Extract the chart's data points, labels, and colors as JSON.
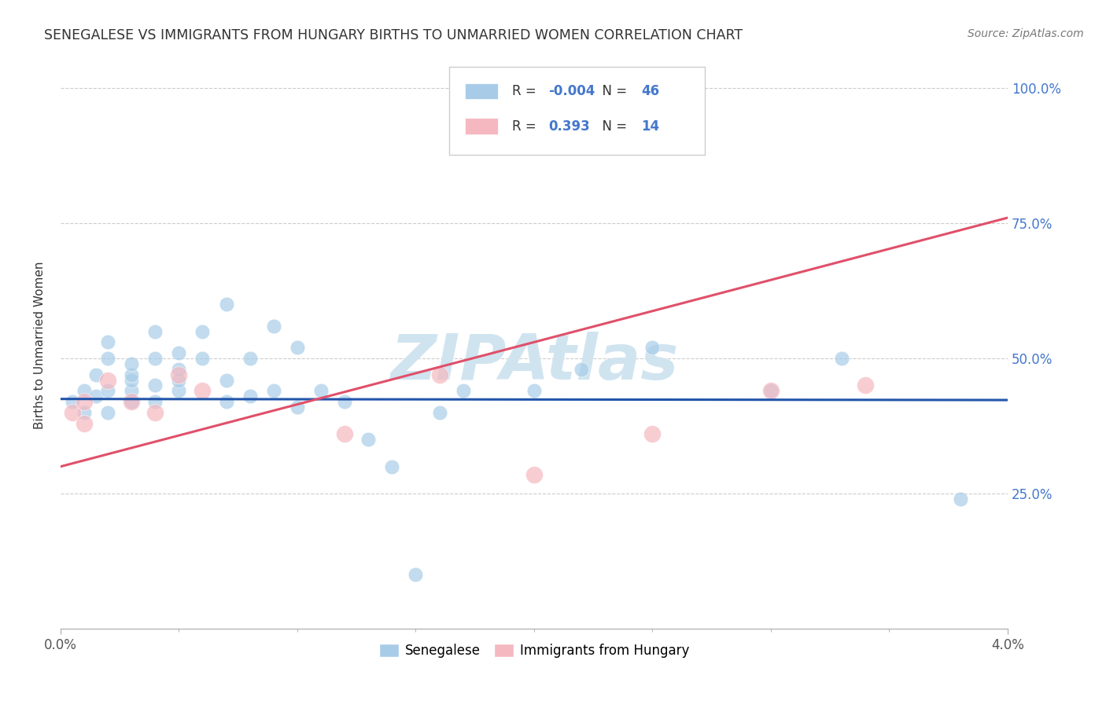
{
  "title": "SENEGALESE VS IMMIGRANTS FROM HUNGARY BIRTHS TO UNMARRIED WOMEN CORRELATION CHART",
  "source": "Source: ZipAtlas.com",
  "ylabel": "Births to Unmarried Women",
  "yticks": [
    0.0,
    0.25,
    0.5,
    0.75,
    1.0
  ],
  "ytick_labels": [
    "",
    "25.0%",
    "50.0%",
    "75.0%",
    "100.0%"
  ],
  "xlim": [
    0.0,
    0.04
  ],
  "ylim": [
    0.0,
    1.05
  ],
  "legend_blue_r": "-0.004",
  "legend_blue_n": "46",
  "legend_pink_r": "0.393",
  "legend_pink_n": "14",
  "blue_color": "#a8cce8",
  "pink_color": "#f5b8c0",
  "blue_line_color": "#2255aa",
  "pink_line_color": "#e0506a",
  "legend_text_color": "#4477cc",
  "watermark": "ZIPAtlas",
  "watermark_color": "#d0e4f0",
  "blue_scatter_x": [
    0.0005,
    0.001,
    0.001,
    0.0015,
    0.0015,
    0.002,
    0.002,
    0.002,
    0.002,
    0.003,
    0.003,
    0.003,
    0.003,
    0.003,
    0.004,
    0.004,
    0.004,
    0.004,
    0.005,
    0.005,
    0.005,
    0.005,
    0.006,
    0.006,
    0.007,
    0.007,
    0.007,
    0.008,
    0.008,
    0.009,
    0.009,
    0.01,
    0.01,
    0.011,
    0.012,
    0.013,
    0.014,
    0.015,
    0.016,
    0.017,
    0.02,
    0.022,
    0.025,
    0.03,
    0.033,
    0.038
  ],
  "blue_scatter_y": [
    0.42,
    0.44,
    0.4,
    0.43,
    0.47,
    0.4,
    0.44,
    0.5,
    0.53,
    0.42,
    0.44,
    0.46,
    0.47,
    0.49,
    0.42,
    0.45,
    0.5,
    0.55,
    0.44,
    0.46,
    0.48,
    0.51,
    0.5,
    0.55,
    0.42,
    0.46,
    0.6,
    0.43,
    0.5,
    0.44,
    0.56,
    0.41,
    0.52,
    0.44,
    0.42,
    0.35,
    0.3,
    0.1,
    0.4,
    0.44,
    0.44,
    0.48,
    0.52,
    0.44,
    0.5,
    0.24
  ],
  "pink_scatter_x": [
    0.0005,
    0.001,
    0.001,
    0.002,
    0.003,
    0.004,
    0.005,
    0.006,
    0.012,
    0.016,
    0.02,
    0.025,
    0.03,
    0.034
  ],
  "pink_scatter_y": [
    0.4,
    0.38,
    0.42,
    0.46,
    0.42,
    0.4,
    0.47,
    0.44,
    0.36,
    0.47,
    0.285,
    0.36,
    0.44,
    0.45
  ],
  "blue_trend_x": [
    0.0,
    0.04
  ],
  "blue_trend_y": [
    0.425,
    0.423
  ],
  "pink_trend_x": [
    0.0,
    0.04
  ],
  "pink_trend_y": [
    0.3,
    0.76
  ]
}
